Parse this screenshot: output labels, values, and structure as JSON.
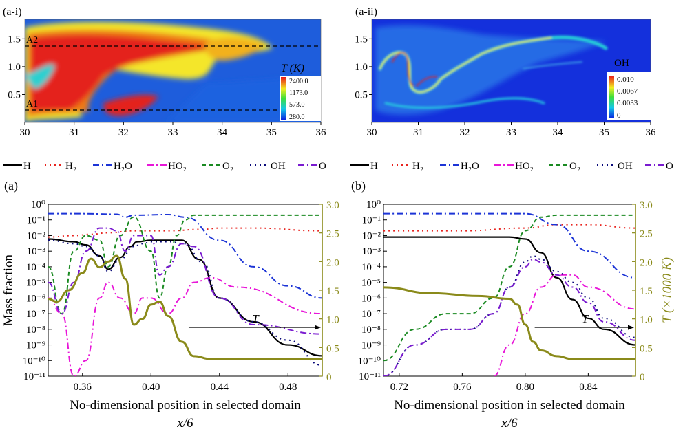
{
  "panels": {
    "a_i": "(a-i)",
    "a_ii": "(a-ii)",
    "a": "(a)",
    "b": "(b)"
  },
  "contour_left": {
    "xticks": [
      "30",
      "31",
      "32",
      "33",
      "34",
      "35",
      "36"
    ],
    "yticks": [
      "0.5",
      "1.0",
      "1.5"
    ],
    "line_labels": [
      "A2",
      "A1"
    ],
    "colorbar_title": "T (K)",
    "colorbar_ticks": [
      "2400.0",
      "1173.0",
      "573.0",
      "280.0"
    ]
  },
  "contour_right": {
    "xticks": [
      "30",
      "31",
      "32",
      "33",
      "34",
      "35",
      "36"
    ],
    "yticks": [
      "0.5",
      "1.0",
      "1.5"
    ],
    "colorbar_title": "OH",
    "colorbar_ticks": [
      "0.010",
      "0.0067",
      "0.0033",
      "0"
    ]
  },
  "legend": [
    {
      "label": "H",
      "color": "#000000",
      "dash": "solid"
    },
    {
      "label": "H₂",
      "color": "#e8231e",
      "dash": "dot"
    },
    {
      "label": "H₂O",
      "color": "#1c34d6",
      "dash": "dashdot"
    },
    {
      "label": "HO₂",
      "color": "#e817d8",
      "dash": "dashdot"
    },
    {
      "label": "O₂",
      "color": "#1a8a22",
      "dash": "dash"
    },
    {
      "label": "OH",
      "color": "#0a0a7a",
      "dash": "dot"
    },
    {
      "label": "O",
      "color": "#7a1bd0",
      "dash": "dashdot"
    }
  ],
  "colors": {
    "temperature": "#8a8a1a"
  },
  "chart_data": [
    {
      "type": "line",
      "panel": "(a)",
      "xlabel": "No-dimensional position in selected domain",
      "xlabel2": "x/6",
      "ylabel": "Mass fraction",
      "y2label": "",
      "yscale": "log",
      "xlim": [
        0.34,
        0.5
      ],
      "ylim": [
        1e-11,
        1
      ],
      "y2lim": [
        0,
        3
      ],
      "xticks": [
        "0.36",
        "0.40",
        "0.44",
        "0.48"
      ],
      "yticks": [
        "10⁰",
        "10⁻¹",
        "10⁻²",
        "10⁻³",
        "10⁻⁴",
        "10⁻⁵",
        "10⁻⁶",
        "10⁻⁷",
        "10⁻⁸",
        "10⁻⁹",
        "10⁻¹⁰",
        "10⁻¹¹"
      ],
      "y2ticks": [
        "3.0",
        "2.5",
        "2.0",
        "1.5",
        "1.0",
        "0.5",
        "0"
      ],
      "annotation": "T",
      "series": [
        {
          "name": "H",
          "x": [
            0.34,
            0.355,
            0.362,
            0.37,
            0.375,
            0.382,
            0.388,
            0.392,
            0.4,
            0.41,
            0.418,
            0.428,
            0.44,
            0.46,
            0.48,
            0.5
          ],
          "y": [
            0.006,
            0.004,
            0.0025,
            0.0005,
            7e-05,
            0.0004,
            0.002,
            0.004,
            0.005,
            0.005,
            0.005,
            0.0003,
            1e-06,
            3e-08,
            1e-09,
            2e-10
          ]
        },
        {
          "name": "H2",
          "x": [
            0.34,
            0.355,
            0.365,
            0.375,
            0.39,
            0.41,
            0.43,
            0.44,
            0.46,
            0.5
          ],
          "y": [
            0.008,
            0.01,
            0.012,
            0.015,
            0.02,
            0.02,
            0.025,
            0.03,
            0.03,
            0.02
          ]
        },
        {
          "name": "H2O",
          "x": [
            0.34,
            0.36,
            0.38,
            0.385,
            0.39,
            0.41,
            0.42,
            0.44,
            0.46,
            0.48,
            0.5
          ],
          "y": [
            0.25,
            0.25,
            0.23,
            0.15,
            0.2,
            0.22,
            0.15,
            0.005,
            0.0001,
            6e-06,
            1e-06
          ]
        },
        {
          "name": "HO2",
          "x": [
            0.34,
            0.348,
            0.355,
            0.362,
            0.37,
            0.375,
            0.382,
            0.39,
            0.395,
            0.4,
            0.41,
            0.418,
            0.425,
            0.435,
            0.45,
            0.5
          ],
          "y": [
            1e-06,
            1e-07,
            1e-11,
            1e-10,
            1e-06,
            1e-05,
            1e-06,
            1e-07,
            1e-06,
            1e-06,
            1e-07,
            1e-06,
            1e-05,
            2e-05,
            5e-06,
            1e-07
          ]
        },
        {
          "name": "O2",
          "x": [
            0.34,
            0.348,
            0.355,
            0.362,
            0.37,
            0.375,
            0.382,
            0.39,
            0.4,
            0.405,
            0.41,
            0.415,
            0.42,
            0.425,
            0.44,
            0.5
          ],
          "y": [
            0.0001,
            1e-07,
            0.001,
            0.01,
            0.005,
            0.0001,
            0.01,
            0.15,
            0.001,
            1e-06,
            0.0001,
            0.01,
            0.1,
            0.2,
            0.2,
            0.2
          ]
        },
        {
          "name": "OH",
          "x": [
            0.34,
            0.355,
            0.362,
            0.37,
            0.375,
            0.382,
            0.39,
            0.395,
            0.4,
            0.41,
            0.42,
            0.43,
            0.44,
            0.46,
            0.48,
            0.5
          ],
          "y": [
            0.005,
            0.003,
            0.002,
            0.0005,
            5e-05,
            0.0003,
            0.002,
            0.003,
            0.004,
            0.004,
            0.003,
            0.0002,
            1e-06,
            3e-08,
            2e-09,
            5e-11
          ]
        },
        {
          "name": "O",
          "x": [
            0.34,
            0.348,
            0.355,
            0.362,
            0.37,
            0.375,
            0.38,
            0.385,
            0.39,
            0.4,
            0.405,
            0.41,
            0.418,
            0.425,
            0.44,
            0.46,
            0.5
          ],
          "y": [
            1e-05,
            1e-07,
            1e-05,
            0.001,
            0.03,
            0.03,
            0.02,
            0.001,
            0.01,
            0.01,
            3e-05,
            0.0001,
            0.003,
            0.002,
            1e-06,
            2e-08,
            5e-09
          ]
        },
        {
          "name": "T",
          "axis": "right",
          "x": [
            0.34,
            0.345,
            0.352,
            0.36,
            0.365,
            0.37,
            0.375,
            0.38,
            0.385,
            0.39,
            0.395,
            0.4,
            0.405,
            0.41,
            0.418,
            0.425,
            0.435,
            0.45,
            0.5
          ],
          "y": [
            1.35,
            1.3,
            1.5,
            1.8,
            2.05,
            1.9,
            2.0,
            2.1,
            1.7,
            0.9,
            1.0,
            1.25,
            1.3,
            1.05,
            0.6,
            0.35,
            0.3,
            0.3,
            0.3
          ]
        }
      ]
    },
    {
      "type": "line",
      "panel": "(b)",
      "xlabel": "No-dimensional position in selected domain",
      "xlabel2": "x/6",
      "ylabel": "",
      "y2label": "T (×1000 K)",
      "yscale": "log",
      "xlim": [
        0.71,
        0.87
      ],
      "ylim": [
        1e-11,
        1
      ],
      "y2lim": [
        0,
        3
      ],
      "xticks": [
        "0.72",
        "0.76",
        "0.80",
        "0.84"
      ],
      "yticks": [
        "10⁰",
        "10⁻¹",
        "10⁻²",
        "10⁻³",
        "10⁻⁴",
        "10⁻⁵",
        "10⁻⁶",
        "10⁻⁷",
        "10⁻⁸",
        "10⁻⁹",
        "10⁻¹⁰",
        "10⁻¹¹"
      ],
      "y2ticks": [
        "3.0",
        "2.5",
        "2.0",
        "1.5",
        "1.0",
        "0.5",
        "0"
      ],
      "annotation": "T",
      "series": [
        {
          "name": "H",
          "x": [
            0.71,
            0.75,
            0.79,
            0.8,
            0.81,
            0.82,
            0.83,
            0.84,
            0.85,
            0.87
          ],
          "y": [
            0.008,
            0.008,
            0.008,
            0.006,
            0.0008,
            2e-05,
            8e-07,
            5e-08,
            1e-08,
            1e-09
          ]
        },
        {
          "name": "H2",
          "x": [
            0.71,
            0.76,
            0.8,
            0.82,
            0.84,
            0.87
          ],
          "y": [
            0.02,
            0.02,
            0.03,
            0.05,
            0.05,
            0.03
          ]
        },
        {
          "name": "H2O",
          "x": [
            0.71,
            0.76,
            0.8,
            0.82,
            0.84,
            0.87
          ],
          "y": [
            0.25,
            0.25,
            0.25,
            0.05,
            0.001,
            2e-05
          ]
        },
        {
          "name": "HO2",
          "x": [
            0.78,
            0.79,
            0.8,
            0.81,
            0.82,
            0.83,
            0.84,
            0.87
          ],
          "y": [
            1e-11,
            1e-09,
            1e-07,
            5e-06,
            3e-05,
            3e-05,
            5e-06,
            2e-07
          ]
        },
        {
          "name": "O2",
          "x": [
            0.71,
            0.73,
            0.75,
            0.765,
            0.78,
            0.79,
            0.8,
            0.81,
            0.82,
            0.87
          ],
          "y": [
            1e-10,
            1e-08,
            1e-07,
            1e-07,
            1e-06,
            0.0001,
            0.02,
            0.15,
            0.2,
            0.2
          ]
        },
        {
          "name": "OH",
          "x": [
            0.71,
            0.73,
            0.75,
            0.765,
            0.78,
            0.79,
            0.8,
            0.805,
            0.81,
            0.82,
            0.83,
            0.84,
            0.85,
            0.87
          ],
          "y": [
            1e-11,
            1e-09,
            1e-08,
            1e-08,
            1e-07,
            5e-06,
            0.0002,
            0.0005,
            0.0003,
            5e-05,
            1e-05,
            1e-06,
            5e-08,
            3e-09
          ]
        },
        {
          "name": "O",
          "x": [
            0.71,
            0.73,
            0.75,
            0.765,
            0.78,
            0.79,
            0.8,
            0.805,
            0.81,
            0.82,
            0.83,
            0.84,
            0.85,
            0.87
          ],
          "y": [
            1e-11,
            1e-09,
            1e-08,
            1e-08,
            1e-07,
            5e-06,
            0.0001,
            0.0003,
            0.0002,
            3e-05,
            5e-06,
            5e-07,
            3e-08,
            2e-09
          ]
        },
        {
          "name": "T",
          "axis": "right",
          "x": [
            0.71,
            0.74,
            0.77,
            0.79,
            0.795,
            0.8,
            0.805,
            0.81,
            0.82,
            0.83,
            0.84,
            0.87
          ],
          "y": [
            1.55,
            1.45,
            1.4,
            1.35,
            1.25,
            0.9,
            0.6,
            0.45,
            0.35,
            0.3,
            0.3,
            0.3
          ]
        }
      ]
    }
  ]
}
